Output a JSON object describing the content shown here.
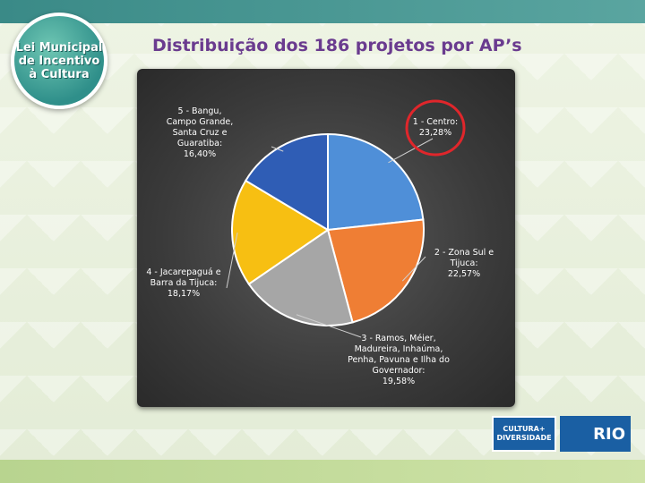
{
  "slide": {
    "title": "Distribuição dos 186 projetos por AP’s",
    "logo_lines": [
      "Lei Municipal",
      "de Incentivo",
      "à Cultura"
    ],
    "footer_logo_left": "CULTURA+",
    "footer_logo_left_sub": "DIVERSIDADE",
    "footer_logo_right": "RIO"
  },
  "chart_data": {
    "type": "pie",
    "title": "",
    "slices": [
      {
        "label_lines": [
          "1 - Centro:",
          "23,28%"
        ],
        "value": 23.28,
        "color": "#4f8fd8"
      },
      {
        "label_lines": [
          "2 - Zona Sul e",
          "Tijuca:",
          "22,57%"
        ],
        "value": 22.57,
        "color": "#ef7e34"
      },
      {
        "label_lines": [
          "3 - Ramos, Méier,",
          "Madureira, Inhaúma,",
          "Penha, Pavuna e Ilha do",
          "Governador:",
          "19,58%"
        ],
        "value": 19.58,
        "color": "#a6a6a6"
      },
      {
        "label_lines": [
          "4 - Jacarepaguá e",
          "Barra da Tijuca:",
          "18,17%"
        ],
        "value": 18.17,
        "color": "#f7bf12"
      },
      {
        "label_lines": [
          "5 - Bangu,",
          "Campo Grande,",
          "Santa Cruz e",
          "Guaratiba:",
          "16,40%"
        ],
        "value": 16.4,
        "color": "#2f5db5"
      }
    ],
    "legend": "none",
    "highlight": {
      "slice_index": 0,
      "style": "red-circle",
      "color": "#e0262b"
    }
  }
}
